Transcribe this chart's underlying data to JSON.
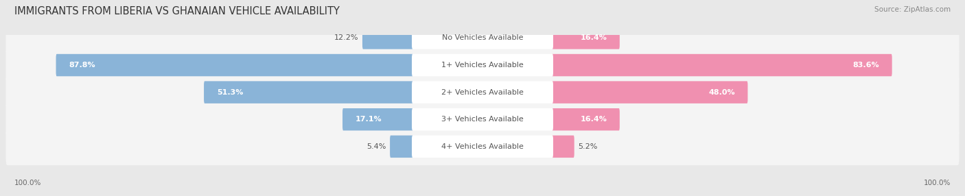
{
  "title": "IMMIGRANTS FROM LIBERIA VS GHANAIAN VEHICLE AVAILABILITY",
  "source": "Source: ZipAtlas.com",
  "categories": [
    "No Vehicles Available",
    "1+ Vehicles Available",
    "2+ Vehicles Available",
    "3+ Vehicles Available",
    "4+ Vehicles Available"
  ],
  "left_values": [
    12.2,
    87.8,
    51.3,
    17.1,
    5.4
  ],
  "right_values": [
    16.4,
    83.6,
    48.0,
    16.4,
    5.2
  ],
  "left_label": "Immigrants from Liberia",
  "right_label": "Ghanaian",
  "left_color": "#8ab4d8",
  "right_color": "#f090b0",
  "bg_color": "#e8e8e8",
  "row_bg_color": "#f4f4f4",
  "max_val": 100.0,
  "title_fontsize": 10.5,
  "label_fontsize": 8,
  "annotation_fontsize": 8,
  "figsize": [
    14.06,
    2.86
  ]
}
